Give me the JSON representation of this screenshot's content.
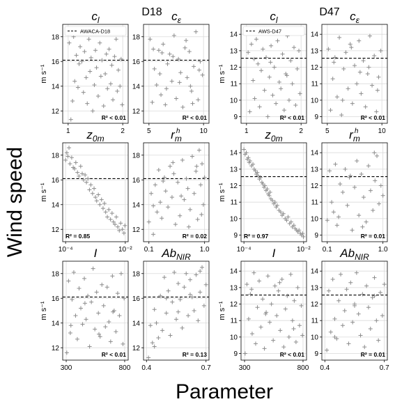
{
  "figure": {
    "ylabel": "Wind speed",
    "xlabel": "Parameter",
    "groups": [
      {
        "title": "D18",
        "legend": "AWACA-D18"
      },
      {
        "title": "D47",
        "legend": "AWS-D47"
      }
    ],
    "unit": "m s⁻¹"
  },
  "chart_data": [
    {
      "type": "scatter",
      "site": "D18",
      "title": "c_l",
      "xscale": "linear",
      "xlim": [
        0.9,
        2.1
      ],
      "xticks": [
        "1",
        "2"
      ],
      "ylim": [
        11,
        19
      ],
      "yticks": [
        "12",
        "14",
        "16",
        "18"
      ],
      "ylabel": "m s⁻¹",
      "hline": 16.1,
      "r2": "R² < 0.01",
      "legend": "AWACA-D18",
      "grid": true,
      "x": [
        1.02,
        1.05,
        1.08,
        1.1,
        1.12,
        1.15,
        1.18,
        1.2,
        1.22,
        1.25,
        1.28,
        1.3,
        1.33,
        1.35,
        1.38,
        1.4,
        1.42,
        1.45,
        1.48,
        1.5,
        1.52,
        1.55,
        1.58,
        1.6,
        1.62,
        1.65,
        1.68,
        1.7,
        1.72,
        1.75,
        1.78,
        1.8,
        1.82,
        1.85,
        1.88,
        1.9,
        1.92,
        1.95,
        1.97,
        1.99
      ],
      "y": [
        17.5,
        11.3,
        12.8,
        18.0,
        14.4,
        16.5,
        13.9,
        15.8,
        17.2,
        16.0,
        13.5,
        16.8,
        14.7,
        12.6,
        17.8,
        15.2,
        16.3,
        12.0,
        14.1,
        16.9,
        15.5,
        13.2,
        17.5,
        14.8,
        16.1,
        12.4,
        15.0,
        16.6,
        13.8,
        17.0,
        14.2,
        15.7,
        12.9,
        16.4,
        17.8,
        13.6,
        15.3,
        14.0,
        16.2,
        12.5
      ]
    },
    {
      "type": "scatter",
      "site": "D18",
      "title": "c_ε",
      "xscale": "linear",
      "xlim": [
        4.5,
        10.5
      ],
      "xticks": [
        "5",
        "10"
      ],
      "ylim": [
        11,
        19
      ],
      "yticks": [
        "12",
        "14",
        "16",
        "18"
      ],
      "ylabel": "",
      "hline": 16.1,
      "r2": "R² < 0.01",
      "grid": true,
      "x": [
        5.1,
        5.3,
        5.5,
        5.7,
        5.9,
        6.1,
        6.3,
        6.5,
        6.7,
        6.9,
        7.1,
        7.3,
        7.5,
        7.7,
        7.9,
        8.1,
        8.3,
        8.5,
        8.7,
        8.9,
        9.1,
        9.3,
        9.5,
        9.7,
        9.9,
        5.4,
        6.0,
        6.6,
        7.2,
        7.8,
        8.4,
        9.0,
        9.6,
        6.2,
        8.8
      ],
      "y": [
        17.8,
        12.7,
        15.4,
        14.1,
        16.9,
        13.3,
        17.4,
        12.5,
        15.8,
        16.6,
        14.4,
        18.1,
        13.0,
        16.2,
        15.1,
        12.3,
        17.1,
        14.7,
        16.8,
        13.6,
        15.6,
        18.4,
        12.9,
        16.0,
        14.9,
        17.0,
        15.0,
        13.8,
        16.4,
        14.3,
        17.7,
        12.6,
        15.3,
        16.7,
        14.0
      ]
    },
    {
      "type": "scatter",
      "site": "D18",
      "title": "z_0m",
      "xscale": "log",
      "xlim": [
        8e-05,
        0.0125
      ],
      "xticks": [
        "10⁻⁴",
        "10⁻²"
      ],
      "ylim": [
        11,
        19
      ],
      "yticks": [
        "12",
        "14",
        "16",
        "18"
      ],
      "ylabel": "m s⁻¹",
      "hline": 16.1,
      "r2": "R² = 0.85",
      "grid": true,
      "x": [
        0.0001,
        0.00011,
        0.00012,
        0.00013,
        0.00014,
        0.00016,
        0.00018,
        0.0002,
        0.00022,
        0.00025,
        0.00028,
        0.00032,
        0.00036,
        0.0004,
        0.00045,
        0.0005,
        0.00056,
        0.00063,
        0.0007,
        0.0008,
        0.0009,
        0.001,
        0.0011,
        0.00125,
        0.0014,
        0.0016,
        0.0018,
        0.002,
        0.0022,
        0.0025,
        0.0028,
        0.0032,
        0.0036,
        0.004,
        0.0045,
        0.005,
        0.0056,
        0.0063,
        0.007,
        0.008,
        0.009,
        0.0097
      ],
      "y": [
        17.6,
        18.2,
        17.9,
        18.6,
        17.3,
        17.8,
        17.0,
        16.9,
        17.4,
        16.6,
        16.3,
        17.1,
        16.5,
        16.0,
        16.4,
        15.8,
        16.1,
        15.2,
        15.6,
        14.9,
        15.3,
        14.6,
        14.3,
        14.8,
        14.0,
        14.4,
        13.7,
        14.1,
        13.4,
        13.0,
        13.6,
        12.8,
        13.3,
        12.6,
        12.4,
        13.0,
        12.2,
        11.9,
        12.5,
        12.0,
        11.7,
        12.3
      ]
    },
    {
      "type": "scatter",
      "site": "D18",
      "title": "r_m^h",
      "xscale": "log",
      "xlim": [
        0.08,
        1.2
      ],
      "xticks": [
        "0.1",
        "1.0"
      ],
      "ylim": [
        11,
        19
      ],
      "yticks": [
        "12",
        "14",
        "16",
        "18"
      ],
      "ylabel": "",
      "hline": 16.1,
      "r2": "R² = 0.02",
      "grid": true,
      "x": [
        0.1,
        0.11,
        0.12,
        0.13,
        0.14,
        0.15,
        0.16,
        0.17,
        0.19,
        0.2,
        0.22,
        0.24,
        0.26,
        0.28,
        0.3,
        0.33,
        0.36,
        0.4,
        0.43,
        0.47,
        0.5,
        0.55,
        0.6,
        0.65,
        0.7,
        0.75,
        0.8,
        0.85,
        0.9,
        0.95,
        1.0,
        0.12,
        0.18,
        0.27,
        0.38,
        0.52,
        0.72,
        0.88
      ],
      "y": [
        12.6,
        14.9,
        11.6,
        15.6,
        13.4,
        16.8,
        14.2,
        12.9,
        16.2,
        15.1,
        13.8,
        17.1,
        14.6,
        16.5,
        12.4,
        15.8,
        13.1,
        17.6,
        14.4,
        16.1,
        15.3,
        13.6,
        17.9,
        14.9,
        16.7,
        12.8,
        18.4,
        15.6,
        17.3,
        14.0,
        16.2,
        13.9,
        15.9,
        17.4,
        14.7,
        12.2,
        17.1,
        13.2
      ]
    },
    {
      "type": "scatter",
      "site": "D18",
      "title": "I",
      "xscale": "linear",
      "xlim": [
        270,
        830
      ],
      "xticks": [
        "300",
        "800"
      ],
      "ylim": [
        11,
        19
      ],
      "yticks": [
        "12",
        "14",
        "16",
        "18"
      ],
      "ylabel": "m s⁻¹",
      "hline": 16.1,
      "r2": "R² < 0.01",
      "grid": true,
      "x": [
        305,
        320,
        335,
        350,
        365,
        380,
        395,
        410,
        425,
        440,
        455,
        470,
        485,
        500,
        515,
        530,
        545,
        560,
        575,
        590,
        605,
        620,
        635,
        650,
        665,
        680,
        695,
        710,
        725,
        740,
        755,
        770,
        785,
        795,
        340,
        460,
        580,
        700
      ],
      "y": [
        11.6,
        17.4,
        13.2,
        15.9,
        18.1,
        14.6,
        12.7,
        16.8,
        15.2,
        13.9,
        17.6,
        14.3,
        16.2,
        12.1,
        15.7,
        18.4,
        13.5,
        16.5,
        14.8,
        12.9,
        17.1,
        15.4,
        13.7,
        16.9,
        14.1,
        12.5,
        17.8,
        15.0,
        13.3,
        16.4,
        14.6,
        18.0,
        12.3,
        16.0,
        13.8,
        15.6,
        13.1,
        14.9
      ]
    },
    {
      "type": "scatter",
      "site": "D18",
      "title": "Ab_NIR",
      "xscale": "linear",
      "xlim": [
        0.385,
        0.715
      ],
      "xticks": [
        "0.4",
        "0.7"
      ],
      "ylim": [
        11,
        19
      ],
      "yticks": [
        "12",
        "14",
        "16",
        "18"
      ],
      "ylabel": "",
      "hline": 16.1,
      "r2": "R² = 0.13",
      "grid": true,
      "x": [
        0.41,
        0.42,
        0.43,
        0.44,
        0.45,
        0.46,
        0.47,
        0.48,
        0.49,
        0.5,
        0.51,
        0.52,
        0.53,
        0.54,
        0.55,
        0.56,
        0.57,
        0.58,
        0.59,
        0.6,
        0.61,
        0.62,
        0.63,
        0.64,
        0.65,
        0.66,
        0.67,
        0.68,
        0.69,
        0.7,
        0.44,
        0.5,
        0.56,
        0.62,
        0.67
      ],
      "y": [
        11.2,
        13.8,
        12.4,
        15.1,
        14.0,
        12.8,
        16.2,
        13.4,
        17.7,
        14.8,
        16.6,
        13.0,
        15.7,
        18.1,
        14.3,
        17.2,
        15.9,
        13.6,
        16.9,
        18.0,
        14.6,
        17.5,
        16.1,
        15.0,
        17.9,
        14.2,
        16.5,
        18.5,
        15.4,
        17.1,
        12.1,
        16.0,
        14.9,
        16.3,
        18.2
      ]
    },
    {
      "type": "scatter",
      "site": "D47",
      "title": "c_l",
      "xscale": "linear",
      "xlim": [
        0.9,
        2.1
      ],
      "xticks": [
        "1",
        "2"
      ],
      "ylim": [
        8.6,
        14.6
      ],
      "yticks": [
        "9",
        "10",
        "11",
        "12",
        "13",
        "14"
      ],
      "ylabel": "m s⁻¹",
      "hline": 12.55,
      "r2": "R² < 0.01",
      "legend": "AWS-D47",
      "grid": true,
      "x": [
        1.03,
        1.06,
        1.09,
        1.12,
        1.15,
        1.18,
        1.21,
        1.24,
        1.27,
        1.3,
        1.33,
        1.36,
        1.39,
        1.42,
        1.45,
        1.48,
        1.51,
        1.54,
        1.57,
        1.6,
        1.63,
        1.66,
        1.69,
        1.72,
        1.75,
        1.78,
        1.81,
        1.84,
        1.87,
        1.9,
        1.93,
        1.96,
        1.98,
        1.14,
        1.44,
        1.74
      ],
      "y": [
        12.9,
        9.3,
        13.4,
        11.2,
        10.1,
        13.7,
        12.2,
        9.6,
        11.8,
        13.1,
        10.6,
        12.6,
        9.0,
        11.4,
        13.3,
        10.3,
        12.0,
        9.8,
        13.6,
        11.1,
        10.7,
        12.8,
        9.4,
        11.6,
        13.9,
        10.0,
        12.4,
        11.0,
        13.2,
        9.7,
        11.9,
        13.0,
        10.4,
        12.5,
        12.3,
        11.5
      ]
    },
    {
      "type": "scatter",
      "site": "D47",
      "title": "c_ε",
      "xscale": "linear",
      "xlim": [
        4.5,
        10.5
      ],
      "xticks": [
        "5",
        "10"
      ],
      "ylim": [
        8.6,
        14.6
      ],
      "yticks": [
        "9",
        "10",
        "11",
        "12",
        "13",
        "14"
      ],
      "ylabel": "",
      "hline": 12.55,
      "r2": "R² < 0.01",
      "grid": true,
      "x": [
        5.1,
        5.3,
        5.5,
        5.7,
        5.9,
        6.1,
        6.3,
        6.5,
        6.7,
        6.9,
        7.1,
        7.3,
        7.5,
        7.7,
        7.9,
        8.1,
        8.3,
        8.5,
        8.7,
        8.9,
        9.1,
        9.3,
        9.5,
        9.7,
        9.9,
        5.6,
        6.4,
        7.2,
        8.0,
        8.8,
        9.6
      ],
      "y": [
        13.1,
        9.4,
        11.3,
        12.6,
        10.2,
        13.8,
        9.1,
        11.9,
        12.9,
        10.7,
        13.4,
        9.8,
        12.1,
        11.0,
        13.6,
        10.4,
        12.4,
        9.6,
        11.6,
        13.9,
        10.9,
        12.7,
        9.3,
        11.4,
        13.0,
        12.3,
        10.0,
        13.2,
        11.7,
        12.0,
        10.6
      ]
    },
    {
      "type": "scatter",
      "site": "D47",
      "title": "z_0m",
      "xscale": "log",
      "xlim": [
        8e-05,
        0.0125
      ],
      "xticks": [
        "10⁻⁴",
        "10⁻²"
      ],
      "ylim": [
        8.6,
        14.6
      ],
      "yticks": [
        "9",
        "10",
        "11",
        "12",
        "13",
        "14"
      ],
      "ylabel": "m s⁻¹",
      "hline": 12.55,
      "r2": "R² = 0.97",
      "grid": true,
      "x": [
        0.0001,
        0.00011,
        0.00012,
        0.00013,
        0.00014,
        0.00015,
        0.00016,
        0.00018,
        0.0002,
        0.00022,
        0.00024,
        0.00026,
        0.00028,
        0.0003,
        0.00033,
        0.00036,
        0.0004,
        0.00043,
        0.00047,
        0.0005,
        0.00055,
        0.0006,
        0.00065,
        0.0007,
        0.00075,
        0.0008,
        0.0009,
        0.001,
        0.0011,
        0.0012,
        0.0013,
        0.0015,
        0.0017,
        0.0019,
        0.0021,
        0.0024,
        0.0027,
        0.003,
        0.0034,
        0.0038,
        0.0042,
        0.0047,
        0.0052,
        0.0058,
        0.0064,
        0.007,
        0.0078,
        0.0085,
        0.0092,
        0.0098
      ],
      "y": [
        14.2,
        13.9,
        14.0,
        13.6,
        13.7,
        13.4,
        13.5,
        13.2,
        13.3,
        13.0,
        12.9,
        12.7,
        12.8,
        12.6,
        12.4,
        12.5,
        12.2,
        12.1,
        11.9,
        12.0,
        11.7,
        11.8,
        11.5,
        11.4,
        11.6,
        11.2,
        11.1,
        10.9,
        11.0,
        10.7,
        10.8,
        10.5,
        10.4,
        10.2,
        10.3,
        10.0,
        9.9,
        10.1,
        9.7,
        9.8,
        9.5,
        9.6,
        9.4,
        9.3,
        9.2,
        9.3,
        9.1,
        9.0,
        9.1,
        8.9
      ]
    },
    {
      "type": "scatter",
      "site": "D47",
      "title": "r_m^h",
      "xscale": "log",
      "xlim": [
        0.08,
        1.2
      ],
      "xticks": [
        "0.1",
        "1.0"
      ],
      "ylim": [
        8.6,
        14.6
      ],
      "yticks": [
        "9",
        "10",
        "11",
        "12",
        "13",
        "14"
      ],
      "ylabel": "",
      "hline": 12.55,
      "r2": "R² = 0.01",
      "grid": true,
      "x": [
        0.1,
        0.11,
        0.12,
        0.13,
        0.14,
        0.15,
        0.17,
        0.19,
        0.21,
        0.23,
        0.25,
        0.28,
        0.31,
        0.34,
        0.37,
        0.41,
        0.45,
        0.5,
        0.55,
        0.6,
        0.66,
        0.72,
        0.78,
        0.85,
        0.92,
        1.0,
        0.16,
        0.26,
        0.43,
        0.7
      ],
      "y": [
        9.9,
        12.9,
        11.0,
        10.4,
        13.3,
        9.6,
        12.1,
        11.6,
        13.0,
        10.8,
        12.5,
        9.3,
        11.9,
        13.5,
        10.2,
        12.7,
        11.3,
        9.8,
        13.2,
        11.7,
        10.5,
        12.3,
        13.8,
        10.9,
        12.0,
        11.4,
        10.1,
        12.6,
        9.5,
        14.0
      ]
    },
    {
      "type": "scatter",
      "site": "D47",
      "title": "I",
      "xscale": "linear",
      "xlim": [
        270,
        830
      ],
      "xticks": [
        "300",
        "800"
      ],
      "ylim": [
        8.6,
        14.6
      ],
      "yticks": [
        "9",
        "10",
        "11",
        "12",
        "13",
        "14"
      ],
      "ylabel": "m s⁻¹",
      "hline": 12.55,
      "r2": "R² < 0.01",
      "grid": true,
      "x": [
        305,
        320,
        335,
        350,
        365,
        380,
        395,
        410,
        425,
        440,
        455,
        470,
        485,
        500,
        515,
        530,
        545,
        560,
        575,
        590,
        605,
        620,
        635,
        650,
        665,
        680,
        695,
        710,
        725,
        740,
        755,
        770,
        785,
        795,
        360,
        480,
        600,
        720
      ],
      "y": [
        9.0,
        13.2,
        11.1,
        12.6,
        10.2,
        13.9,
        9.6,
        11.8,
        13.4,
        10.6,
        12.3,
        9.3,
        11.5,
        13.7,
        10.9,
        12.0,
        9.8,
        13.1,
        11.3,
        12.8,
        10.4,
        13.5,
        9.4,
        11.7,
        12.5,
        10.0,
        13.8,
        11.0,
        12.2,
        9.7,
        13.0,
        10.7,
        11.9,
        10.1,
        12.9,
        11.4,
        13.3,
        10.5
      ]
    },
    {
      "type": "scatter",
      "site": "D47",
      "title": "Ab_NIR",
      "xscale": "linear",
      "xlim": [
        0.385,
        0.715
      ],
      "xticks": [
        "0.4",
        "0.7"
      ],
      "ylim": [
        8.6,
        14.6
      ],
      "yticks": [
        "9",
        "10",
        "11",
        "12",
        "13",
        "14"
      ],
      "ylabel": "",
      "hline": 12.55,
      "r2": "R² = 0.01",
      "grid": true,
      "x": [
        0.41,
        0.42,
        0.43,
        0.44,
        0.45,
        0.46,
        0.47,
        0.48,
        0.49,
        0.5,
        0.51,
        0.52,
        0.53,
        0.54,
        0.55,
        0.56,
        0.57,
        0.58,
        0.59,
        0.6,
        0.61,
        0.62,
        0.63,
        0.64,
        0.65,
        0.66,
        0.67,
        0.68,
        0.69,
        0.7,
        0.45,
        0.55,
        0.65
      ],
      "y": [
        9.2,
        12.8,
        10.3,
        13.5,
        11.1,
        9.9,
        12.2,
        13.8,
        10.7,
        11.6,
        12.9,
        9.6,
        13.3,
        10.9,
        12.0,
        13.9,
        11.4,
        10.1,
        12.6,
        9.4,
        13.1,
        11.8,
        10.5,
        12.4,
        13.6,
        11.0,
        9.8,
        12.7,
        11.3,
        13.2,
        10.0,
        11.9,
        12.5
      ]
    }
  ]
}
